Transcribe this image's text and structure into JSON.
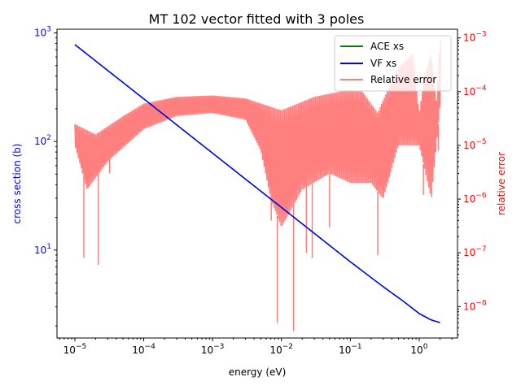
{
  "chart_data": {
    "type": "line",
    "title": "MT 102 vector fitted with 3 poles",
    "xlabel": "energy (eV)",
    "ylabel_left": "cross section (b)",
    "ylabel_right": "relative error",
    "x_scale": "log",
    "y_left_scale": "log",
    "y_right_scale": "log",
    "xlim": [
      5.5e-06,
      3.6
    ],
    "ylim_left": [
      1.55,
      1080
    ],
    "ylim_right": [
      2.6e-09,
      0.00145
    ],
    "x_ticks": [
      {
        "value": 1e-05,
        "base": "10",
        "exp": "−5"
      },
      {
        "value": 0.0001,
        "base": "10",
        "exp": "−4"
      },
      {
        "value": 0.001,
        "base": "10",
        "exp": "−3"
      },
      {
        "value": 0.01,
        "base": "10",
        "exp": "−2"
      },
      {
        "value": 0.1,
        "base": "10",
        "exp": "−1"
      },
      {
        "value": 1,
        "base": "10",
        "exp": "0"
      }
    ],
    "y_left_ticks": [
      {
        "value": 10,
        "base": "10",
        "exp": "1"
      },
      {
        "value": 100,
        "base": "10",
        "exp": "2"
      },
      {
        "value": 1000,
        "base": "10",
        "exp": "3"
      }
    ],
    "y_right_ticks": [
      {
        "value": 1e-08,
        "base": "10",
        "exp": "−8"
      },
      {
        "value": 1e-07,
        "base": "10",
        "exp": "−7"
      },
      {
        "value": 1e-06,
        "base": "10",
        "exp": "−6"
      },
      {
        "value": 1e-05,
        "base": "10",
        "exp": "−5"
      },
      {
        "value": 0.0001,
        "base": "10",
        "exp": "−4"
      },
      {
        "value": 0.001,
        "base": "10",
        "exp": "−3"
      }
    ],
    "legend": {
      "placement": "upper-right",
      "entries": [
        "ACE xs",
        "VF xs",
        "Relative error"
      ]
    },
    "series": [
      {
        "name": "ACE xs",
        "color": "#008000",
        "axis": "left",
        "x": [
          1e-05,
          0.0001,
          0.001,
          0.01,
          0.1,
          0.3,
          0.6,
          1.0,
          1.5,
          2.0
        ],
        "y": [
          780,
          247,
          78,
          24.7,
          7.8,
          4.6,
          3.35,
          2.6,
          2.27,
          2.15
        ]
      },
      {
        "name": "VF xs",
        "color": "#0000ff",
        "axis": "left",
        "x": [
          1e-05,
          0.0001,
          0.001,
          0.01,
          0.1,
          0.3,
          0.6,
          1.0,
          1.5,
          2.0
        ],
        "y": [
          780,
          247,
          78,
          24.7,
          7.8,
          4.6,
          3.35,
          2.6,
          2.27,
          2.15
        ]
      },
      {
        "name": "Relative error",
        "color": "#ff0000",
        "alpha": 0.5,
        "axis": "right",
        "upper_envelope": {
          "x": [
            1e-05,
            2e-05,
            5e-05,
            0.0001,
            0.0003,
            0.001,
            0.003,
            0.01,
            0.03,
            0.1,
            0.15,
            0.25,
            0.3,
            0.5,
            0.8,
            1.0,
            1.2,
            1.5,
            1.8,
            2.0
          ],
          "y": [
            2.5e-05,
            1.6e-05,
            3.5e-05,
            6e-05,
            8e-05,
            8.5e-05,
            7.5e-05,
            4.5e-05,
            8e-05,
            0.00011,
            0.0001,
            4e-05,
            7e-05,
            0.00028,
            0.0005,
            4e-05,
            0.0002,
            0.0005,
            6e-05,
            0.0009
          ]
        },
        "lower_envelope": {
          "x": [
            1e-05,
            1.5e-05,
            3e-05,
            0.0001,
            0.0003,
            0.001,
            0.003,
            0.005,
            0.007,
            0.01,
            0.02,
            0.05,
            0.1,
            0.2,
            0.3,
            0.5,
            1.0,
            1.5,
            2.0
          ],
          "y": [
            1e-05,
            1.5e-06,
            5e-06,
            2e-05,
            3.5e-05,
            4e-05,
            3e-05,
            8e-06,
            1e-06,
            3e-07,
            1.5e-06,
            3e-06,
            2e-06,
            2e-06,
            1e-06,
            1e-05,
            1e-05,
            1e-06,
            5e-05
          ]
        },
        "dips": [
          {
            "x": 1.35e-05,
            "y": 8e-08
          },
          {
            "x": 2.2e-05,
            "y": 6e-08
          },
          {
            "x": 3.2e-05,
            "y": 3e-06
          },
          {
            "x": 0.0071,
            "y": 4e-07
          },
          {
            "x": 0.0087,
            "y": 5e-09
          },
          {
            "x": 0.015,
            "y": 3.5e-09
          },
          {
            "x": 0.023,
            "y": 1e-07
          },
          {
            "x": 0.028,
            "y": 8e-08
          },
          {
            "x": 0.05,
            "y": 3e-07
          },
          {
            "x": 0.25,
            "y": 9e-08
          },
          {
            "x": 1.15,
            "y": 1.2e-06
          },
          {
            "x": 1.9,
            "y": 8e-06
          }
        ]
      }
    ]
  }
}
